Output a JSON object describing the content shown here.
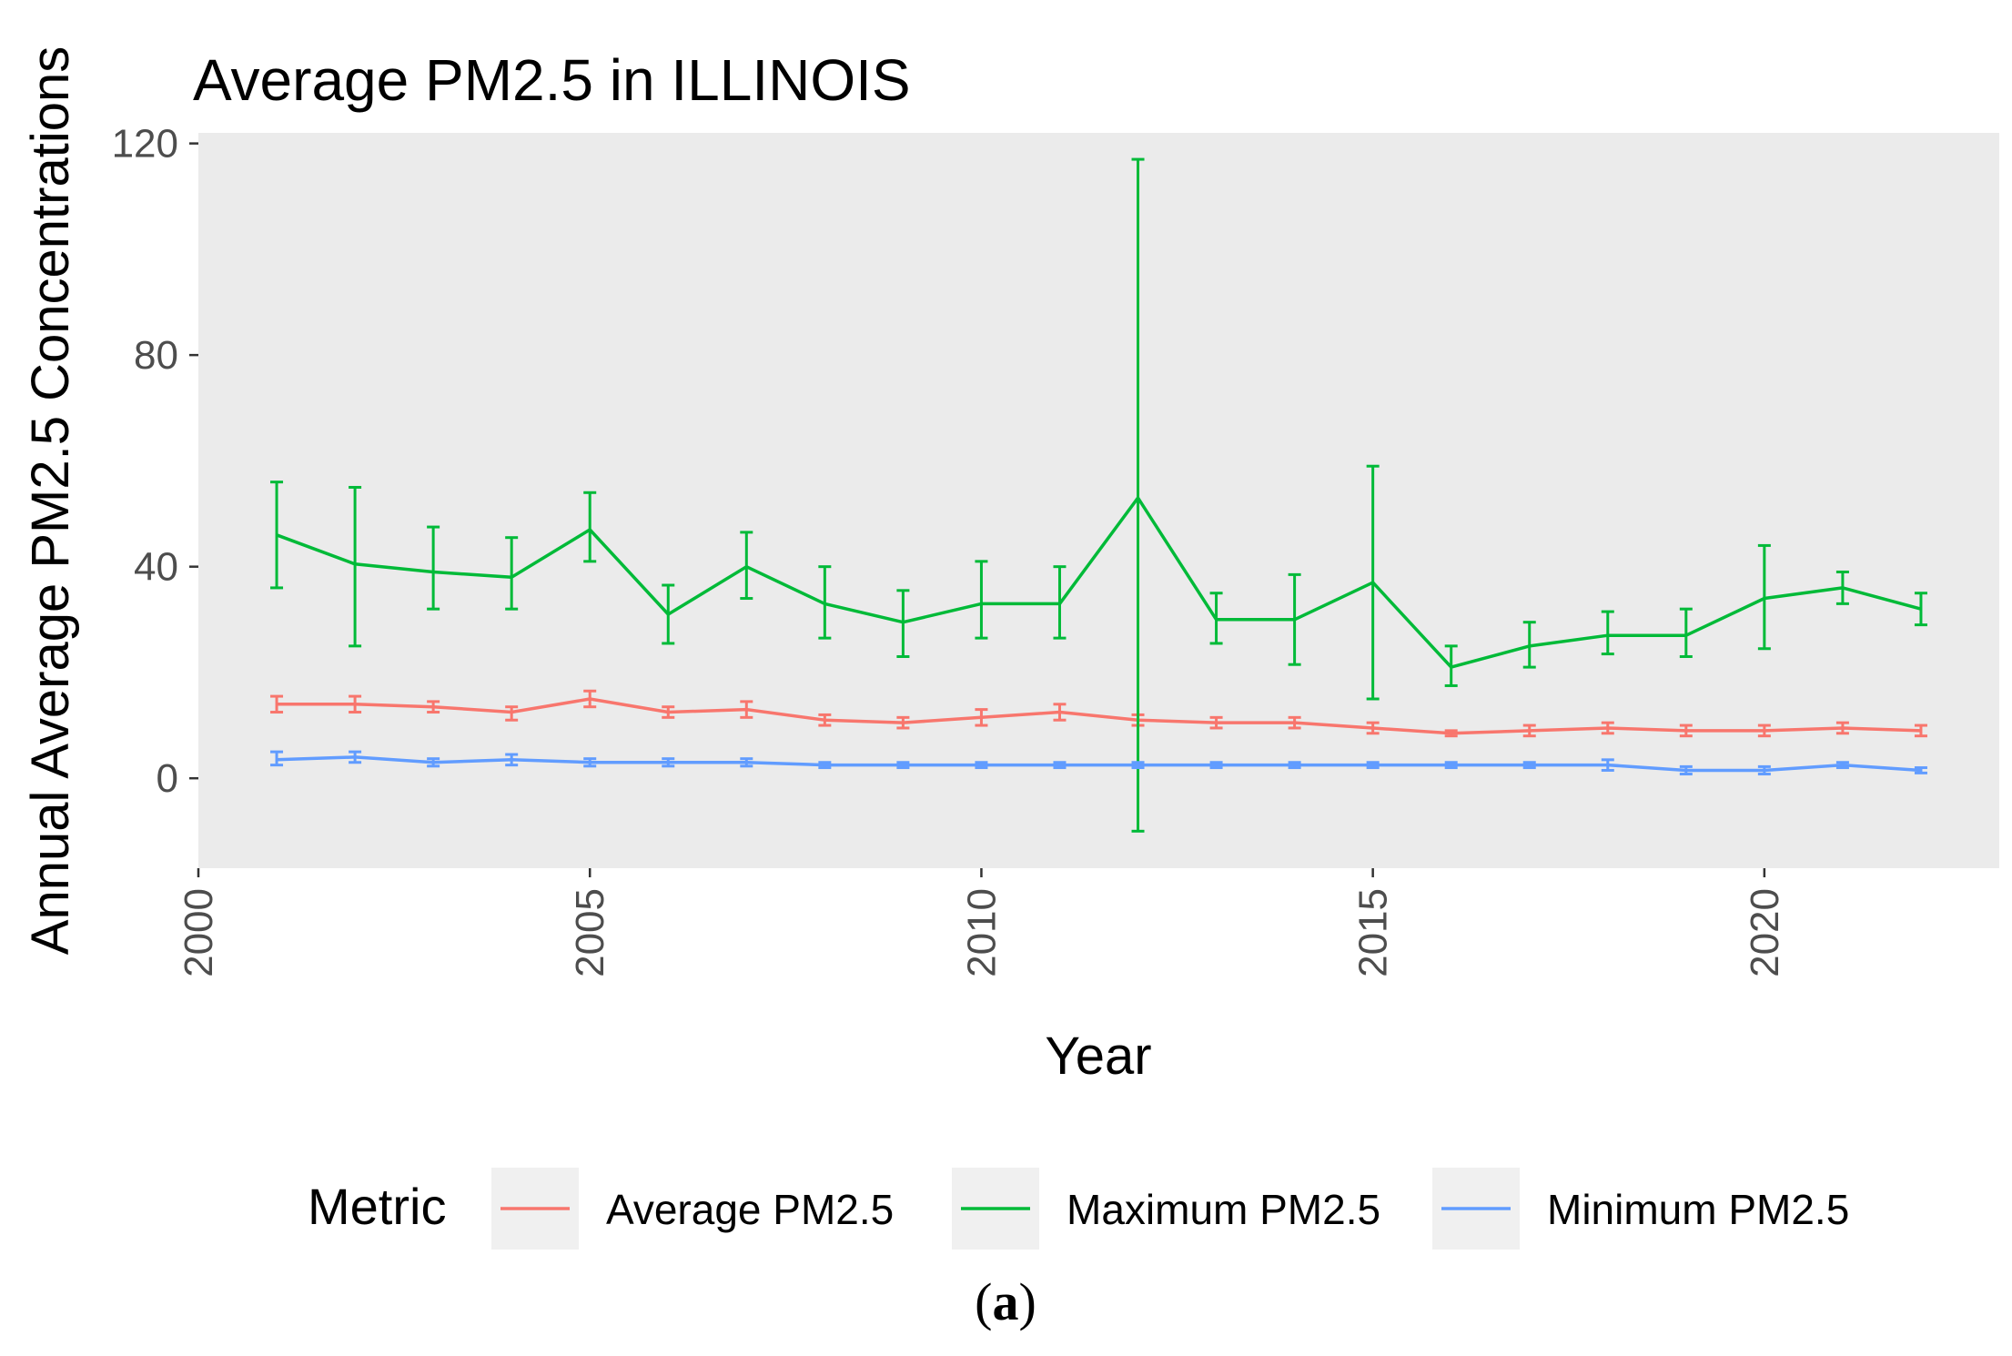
{
  "chart_data": {
    "type": "line",
    "title": "Average PM2.5 in ILLINOIS",
    "xlabel": "Year",
    "ylabel": "Annual Average PM2.5 Concentrations",
    "xlim": [
      2000,
      2023
    ],
    "ylim": [
      -17,
      122
    ],
    "x_ticks": [
      2000,
      2005,
      2010,
      2015,
      2020
    ],
    "y_ticks": [
      0,
      40,
      80,
      120
    ],
    "grid": false,
    "legend": {
      "title": "Metric",
      "placement": "bottom"
    },
    "x": [
      2001,
      2002,
      2003,
      2004,
      2005,
      2006,
      2007,
      2008,
      2009,
      2010,
      2011,
      2012,
      2013,
      2014,
      2015,
      2016,
      2017,
      2018,
      2019,
      2020,
      2021,
      2022
    ],
    "series": [
      {
        "name": "Average PM2.5",
        "color": "#F8766D",
        "values": [
          14,
          14,
          13.5,
          12.5,
          15,
          12.5,
          13,
          11,
          10.5,
          11.5,
          12.5,
          11,
          10.5,
          10.5,
          9.5,
          8.5,
          9,
          9.5,
          9,
          9,
          9.5,
          9
        ],
        "lower": [
          12.5,
          12.5,
          12.5,
          11,
          13.5,
          11.5,
          11.5,
          10,
          9.5,
          10,
          11,
          10,
          9.5,
          9.5,
          8.5,
          8,
          8,
          8.5,
          8,
          8,
          8.5,
          8
        ],
        "upper": [
          15.5,
          15.5,
          14.5,
          13.5,
          16.5,
          13.5,
          14.5,
          12,
          11.5,
          13,
          14,
          12,
          11.5,
          11.5,
          10.5,
          9,
          10,
          10.5,
          10,
          10,
          10.5,
          10
        ]
      },
      {
        "name": "Maximum PM2.5",
        "color": "#00BA38",
        "values": [
          46,
          40.5,
          39,
          38,
          47,
          31,
          40,
          33,
          29.5,
          33,
          33,
          53,
          30,
          30,
          37,
          21,
          25,
          27,
          27,
          34,
          36,
          32
        ],
        "lower": [
          36,
          25,
          32,
          32,
          41,
          25.5,
          34,
          26.5,
          23,
          26.5,
          26.5,
          -10,
          25.5,
          21.5,
          15,
          17.5,
          21,
          23.5,
          23,
          24.5,
          33,
          29
        ],
        "upper": [
          56,
          55,
          47.5,
          45.5,
          54,
          36.5,
          46.5,
          40,
          35.5,
          41,
          40,
          117,
          35,
          38.5,
          59,
          25,
          29.5,
          31.5,
          32,
          44,
          39,
          35
        ]
      },
      {
        "name": "Minimum PM2.5",
        "color": "#619CFF",
        "values": [
          3.5,
          4,
          3,
          3.5,
          3,
          3,
          3,
          2.5,
          2.5,
          2.5,
          2.5,
          2.5,
          2.5,
          2.5,
          2.5,
          2.5,
          2.5,
          2.5,
          1.5,
          1.5,
          2.5,
          1.5
        ],
        "lower": [
          2.5,
          3,
          2.3,
          2.5,
          2.3,
          2.3,
          2.3,
          2,
          2,
          2,
          2,
          2,
          2,
          2,
          2,
          2,
          2,
          1.5,
          0.8,
          0.8,
          2,
          1
        ],
        "upper": [
          5,
          5,
          3.7,
          4.5,
          3.7,
          3.7,
          3.7,
          3,
          3,
          3,
          3,
          3,
          3,
          3,
          3,
          3,
          3,
          3.5,
          2.2,
          2.2,
          3,
          2
        ]
      }
    ]
  },
  "caption": {
    "prefix": "(",
    "letter": "a",
    "suffix": ")"
  }
}
